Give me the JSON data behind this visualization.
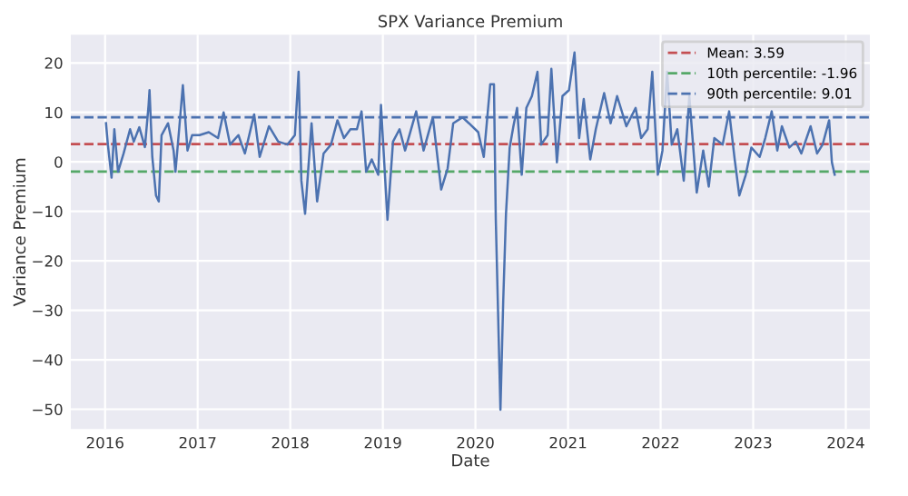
{
  "chart_data": {
    "type": "line",
    "title": "SPX Variance Premium",
    "xlabel": "Date",
    "ylabel": "Variance Premium",
    "xlim": [
      2015.63,
      2024.26
    ],
    "xticks": [
      2016,
      2017,
      2018,
      2019,
      2020,
      2021,
      2022,
      2023,
      2024
    ],
    "ylim": [
      -54,
      25.7
    ],
    "yticks": [
      {
        "value": -50,
        "label": "−50"
      },
      {
        "value": -40,
        "label": "−40"
      },
      {
        "value": -30,
        "label": "−30"
      },
      {
        "value": -20,
        "label": "−20"
      },
      {
        "value": -10,
        "label": "−10"
      },
      0,
      10,
      20
    ],
    "grid": true,
    "legend": "top right",
    "line_style": "solid",
    "ref_lines": [
      {
        "axis": "y",
        "value": 3.59,
        "label": "Mean: 3.59",
        "color": "#c44e52",
        "line_style": "dashed"
      },
      {
        "axis": "y",
        "value": -1.96,
        "label": "10th percentile: -1.96",
        "color": "#55a868",
        "line_style": "dashed"
      },
      {
        "axis": "y",
        "value": 9.01,
        "label": "90th percentile: 9.01",
        "color": "#4c72b0",
        "line_style": "dashed"
      }
    ],
    "series": [
      {
        "color": "#4c72b0",
        "x": [
          2016.01,
          2016.03,
          2016.07,
          2016.1,
          2016.14,
          2016.2,
          2016.27,
          2016.31,
          2016.37,
          2016.43,
          2016.47,
          2016.48,
          2016.51,
          2016.55,
          2016.58,
          2016.61,
          2016.68,
          2016.74,
          2016.76,
          2016.8,
          2016.84,
          2016.89,
          2016.94,
          2017.02,
          2017.12,
          2017.22,
          2017.28,
          2017.35,
          2017.44,
          2017.51,
          2017.61,
          2017.67,
          2017.77,
          2017.87,
          2017.97,
          2018.05,
          2018.09,
          2018.12,
          2018.16,
          2018.23,
          2018.29,
          2018.36,
          2018.44,
          2018.51,
          2018.58,
          2018.65,
          2018.72,
          2018.77,
          2018.82,
          2018.88,
          2018.95,
          2018.98,
          2019.05,
          2019.11,
          2019.18,
          2019.24,
          2019.36,
          2019.44,
          2019.54,
          2019.63,
          2019.7,
          2019.76,
          2019.86,
          2019.93,
          2020.03,
          2020.09,
          2020.16,
          2020.2,
          2020.22,
          2020.27,
          2020.3,
          2020.33,
          2020.37,
          2020.41,
          2020.45,
          2020.5,
          2020.55,
          2020.61,
          2020.67,
          2020.71,
          2020.78,
          2020.82,
          2020.88,
          2020.94,
          2021.01,
          2021.07,
          2021.12,
          2021.17,
          2021.24,
          2021.3,
          2021.39,
          2021.46,
          2021.53,
          2021.63,
          2021.73,
          2021.79,
          2021.86,
          2021.91,
          2021.97,
          2022.02,
          2022.07,
          2022.12,
          2022.18,
          2022.25,
          2022.31,
          2022.39,
          2022.46,
          2022.52,
          2022.58,
          2022.67,
          2022.74,
          2022.8,
          2022.85,
          2022.92,
          2022.98,
          2023.07,
          2023.13,
          2023.2,
          2023.26,
          2023.31,
          2023.39,
          2023.46,
          2023.52,
          2023.62,
          2023.69,
          2023.75,
          2023.82,
          2023.85,
          2023.88
        ],
        "values": [
          7.8,
          3.5,
          -3.2,
          6.6,
          -2,
          1.7,
          6.6,
          4.1,
          7,
          3,
          11.5,
          14.5,
          1,
          -6.8,
          -8,
          5.4,
          7.8,
          2.3,
          -2,
          6.6,
          15.5,
          2.3,
          5.4,
          5.4,
          6,
          4.8,
          10,
          3.5,
          5.4,
          1.7,
          9.6,
          1,
          7.2,
          4.1,
          3.5,
          5.4,
          18.2,
          -3.8,
          -10.5,
          7.8,
          -8,
          1.7,
          3.5,
          8.4,
          4.8,
          6.6,
          6.6,
          10.2,
          -2,
          0.5,
          -2.6,
          11.5,
          -11.7,
          4.1,
          6.6,
          2.3,
          10.2,
          2.3,
          9,
          -5.6,
          -1.3,
          7.8,
          9,
          7.8,
          6,
          1,
          15.7,
          15.7,
          -11.7,
          -50.1,
          -28.2,
          -10.5,
          2.9,
          7.2,
          10.9,
          -2.6,
          10.9,
          13.3,
          18.2,
          3.5,
          5.4,
          18.8,
          -0.1,
          13.3,
          14.5,
          22.1,
          4.8,
          12.7,
          0.5,
          6.6,
          13.9,
          7.8,
          13.3,
          7.2,
          10.9,
          4.8,
          6.6,
          18.2,
          -2.6,
          2.3,
          18.2,
          3.5,
          6.6,
          -3.8,
          13.3,
          -6.2,
          2.3,
          -5,
          4.8,
          3.5,
          10.2,
          0.5,
          -6.8,
          -2.6,
          2.9,
          1,
          4.8,
          10.2,
          2.3,
          7.2,
          2.9,
          4.1,
          1.7,
          7.2,
          1.7,
          3.5,
          8.4,
          -0.1,
          -2.6
        ]
      }
    ]
  }
}
